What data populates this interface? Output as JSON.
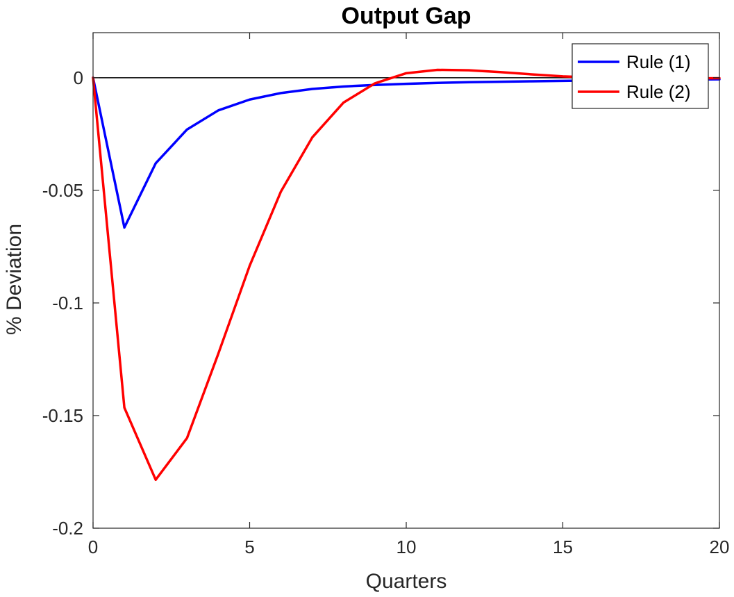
{
  "chart_data": {
    "type": "line",
    "title": "Output Gap",
    "xlabel": "Quarters",
    "ylabel": "% Deviation",
    "xlim": [
      0,
      20
    ],
    "ylim": [
      -0.2,
      0.02
    ],
    "xticks": [
      0,
      5,
      10,
      15,
      20
    ],
    "xtick_labels": [
      "0",
      "5",
      "10",
      "15",
      "20"
    ],
    "yticks": [
      0,
      -0.05,
      -0.1,
      -0.15,
      -0.2
    ],
    "ytick_labels": [
      "0",
      "-0.05",
      "-0.1",
      "-0.15",
      "-0.2"
    ],
    "grid": false,
    "zero_line": true,
    "legend_position": "top-right",
    "x": [
      0,
      1,
      2,
      3,
      4,
      5,
      6,
      7,
      8,
      9,
      10,
      11,
      12,
      13,
      14,
      15,
      16,
      17,
      18,
      19,
      20
    ],
    "series": [
      {
        "name": "Rule (1)",
        "color": "#0000ff",
        "values": [
          0,
          -0.0665,
          -0.038,
          -0.023,
          -0.0145,
          -0.0097,
          -0.0068,
          -0.005,
          -0.0039,
          -0.0032,
          -0.0027,
          -0.0023,
          -0.002,
          -0.0018,
          -0.0016,
          -0.0014,
          -0.0012,
          -0.001,
          -0.0009,
          -0.0008,
          -0.0007
        ]
      },
      {
        "name": "Rule (2)",
        "color": "#ff0000",
        "values": [
          0,
          -0.1465,
          -0.1785,
          -0.16,
          -0.1225,
          -0.0835,
          -0.0505,
          -0.0265,
          -0.011,
          -0.0025,
          0.002,
          0.0035,
          0.0033,
          0.0025,
          0.0015,
          0.0006,
          0.0001,
          -0.0002,
          -0.0003,
          -0.0003,
          -0.0002
        ]
      }
    ]
  }
}
